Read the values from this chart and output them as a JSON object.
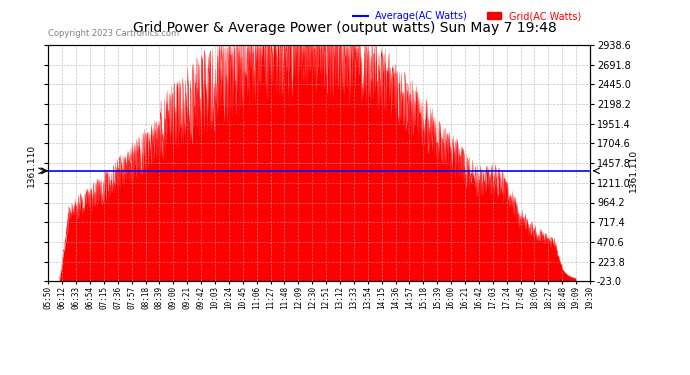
{
  "title": "Grid Power & Average Power (output watts) Sun May 7 19:48",
  "copyright": "Copyright 2023 Cartronics.com",
  "legend_items": [
    {
      "label": "Average(AC Watts)",
      "color": "blue"
    },
    {
      "label": "Grid(AC Watts)",
      "color": "red"
    }
  ],
  "average_value": 1361.11,
  "y_min": -23.0,
  "y_max": 2938.6,
  "y_ticks": [
    2938.6,
    2691.8,
    2445.0,
    2198.2,
    1951.4,
    1704.6,
    1457.8,
    1211.0,
    964.2,
    717.4,
    470.6,
    223.8,
    -23.0
  ],
  "x_ticks": [
    "05:50",
    "06:12",
    "06:33",
    "06:54",
    "07:15",
    "07:36",
    "07:57",
    "08:18",
    "08:39",
    "09:00",
    "09:21",
    "09:42",
    "10:03",
    "10:24",
    "10:45",
    "11:06",
    "11:27",
    "11:48",
    "12:09",
    "12:30",
    "12:51",
    "13:12",
    "13:33",
    "13:54",
    "14:15",
    "14:36",
    "14:57",
    "15:18",
    "15:39",
    "16:00",
    "16:21",
    "16:42",
    "17:03",
    "17:24",
    "17:45",
    "18:06",
    "18:27",
    "18:48",
    "19:09",
    "19:30"
  ],
  "background_color": "#ffffff",
  "plot_bg_color": "#ffffff",
  "grid_color": "#aaaaaa",
  "fill_color": "#ff0000",
  "line_color": "#0000ff"
}
